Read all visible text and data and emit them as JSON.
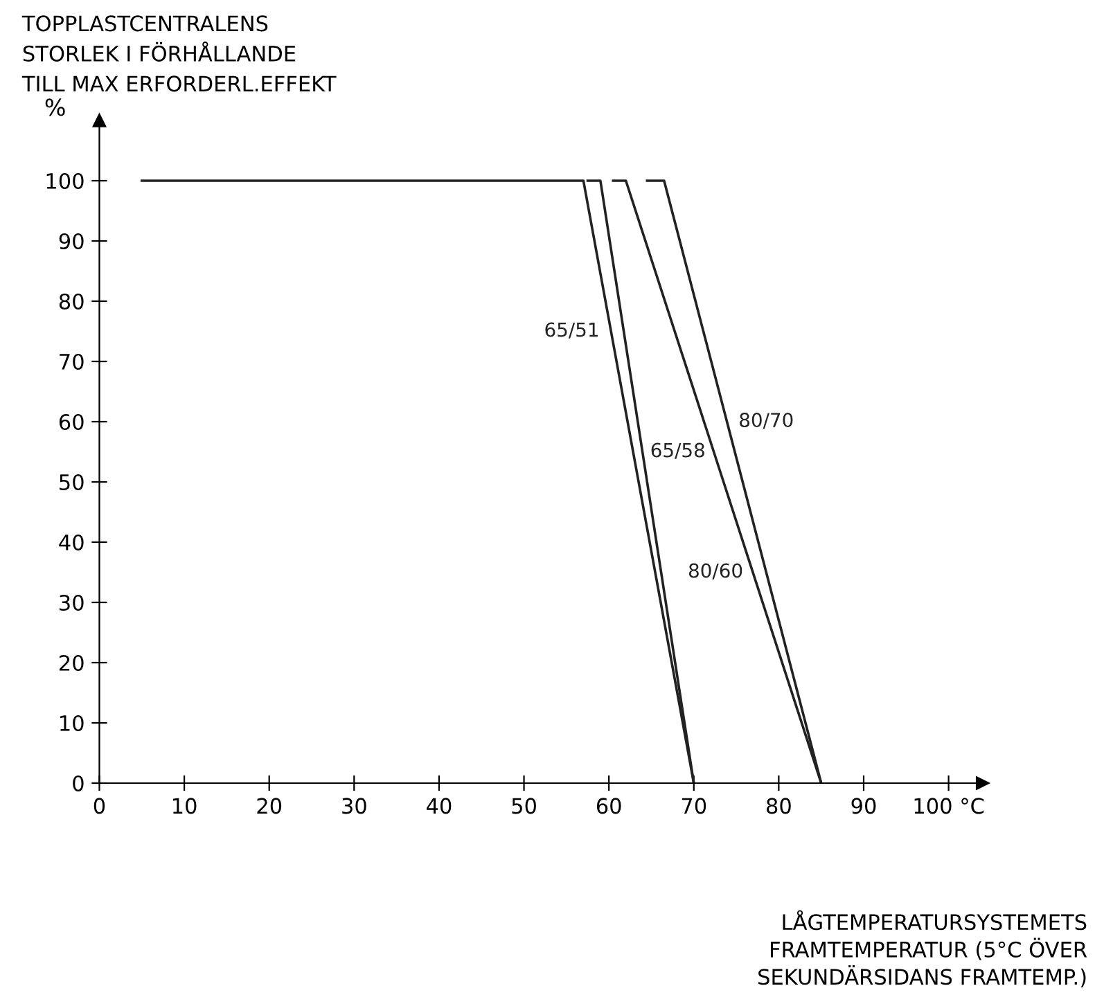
{
  "chart_data": {
    "type": "line",
    "title": "TOPPLASTCENTRALENS\nSTORLEK I FÖRHÅLLANDE\nTILL MAX ERFORDERL.EFFEKT",
    "ylabel": "%",
    "xlabel": "LÅGTEMPERATURSYSTEMETS\nFRAMTEMPERATUR (5°C ÖVER\nSEKUNDÄRSIDANS FRAMTEMP.)",
    "xlim": [
      0,
      104
    ],
    "ylim": [
      0,
      110
    ],
    "xticks": [
      0,
      10,
      20,
      30,
      40,
      50,
      60,
      70,
      80,
      90,
      {
        "value": 100,
        "label": "100 °C"
      }
    ],
    "yticks": [
      0,
      10,
      20,
      30,
      40,
      50,
      60,
      70,
      80,
      90,
      100
    ],
    "grid": false,
    "legend": false,
    "marker": "none",
    "line_style": "solid",
    "series": [
      {
        "name": "65/51",
        "color": "#222222",
        "x": [
          5,
          57,
          70
        ],
        "values": [
          100,
          100,
          0
        ]
      },
      {
        "name": "65/58",
        "color": "#222222",
        "x": [
          57.5,
          59,
          70
        ],
        "values": [
          100,
          100,
          0
        ]
      },
      {
        "name": "80/60",
        "color": "#222222",
        "x": [
          60.5,
          62,
          85
        ],
        "values": [
          100,
          100,
          0
        ]
      },
      {
        "name": "80/70",
        "color": "#222222",
        "x": [
          64.5,
          66.5,
          85
        ],
        "values": [
          100,
          100,
          0
        ]
      }
    ]
  }
}
